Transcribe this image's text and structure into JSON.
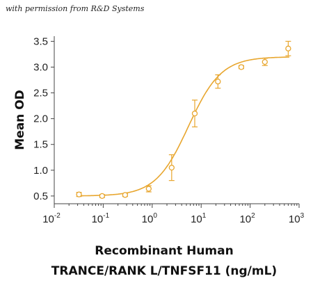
{
  "header": {
    "permission_note": "with permission from R&D Systems"
  },
  "chart_data": {
    "type": "scatter",
    "title": "",
    "xlabel": "Recombinant Human\nTRANCE/RANK L/TNFSF11 (ng/mL)",
    "ylabel": "Mean OD",
    "x_scale": "log",
    "xlim": [
      0.01,
      1000
    ],
    "ylim": [
      0.35,
      3.6
    ],
    "x_ticks": [
      0.01,
      0.1,
      1,
      10,
      100,
      1000
    ],
    "x_tick_labels": [
      {
        "base": "10",
        "exp": "-2"
      },
      {
        "base": "10",
        "exp": "-1"
      },
      {
        "base": "10",
        "exp": "0"
      },
      {
        "base": "10",
        "exp": "1"
      },
      {
        "base": "10",
        "exp": "2"
      },
      {
        "base": "10",
        "exp": "3"
      }
    ],
    "y_ticks": [
      0.5,
      1.0,
      1.5,
      2.0,
      2.5,
      3.0,
      3.5
    ],
    "y_tick_labels": [
      "0.5",
      "1.0",
      "1.5",
      "2.0",
      "2.5",
      "3.0",
      "3.5"
    ],
    "grid": false,
    "legend": "none",
    "color": "#E8A62E",
    "series": [
      {
        "points": [
          {
            "x": 0.032,
            "y": 0.53,
            "err": 0.04
          },
          {
            "x": 0.095,
            "y": 0.5,
            "err": 0.03
          },
          {
            "x": 0.28,
            "y": 0.52,
            "err": 0.03
          },
          {
            "x": 0.85,
            "y": 0.64,
            "err": 0.06
          },
          {
            "x": 2.5,
            "y": 1.05,
            "err": 0.25
          },
          {
            "x": 7.4,
            "y": 2.1,
            "err": 0.26
          },
          {
            "x": 22,
            "y": 2.72,
            "err": 0.13
          },
          {
            "x": 66,
            "y": 3.0,
            "err": 0.03
          },
          {
            "x": 200,
            "y": 3.1,
            "err": 0.07
          },
          {
            "x": 600,
            "y": 3.36,
            "err": 0.14
          }
        ],
        "fit": {
          "bottom": 0.5,
          "top": 3.2,
          "ec50": 5.5,
          "hill": 1.3
        }
      }
    ]
  }
}
